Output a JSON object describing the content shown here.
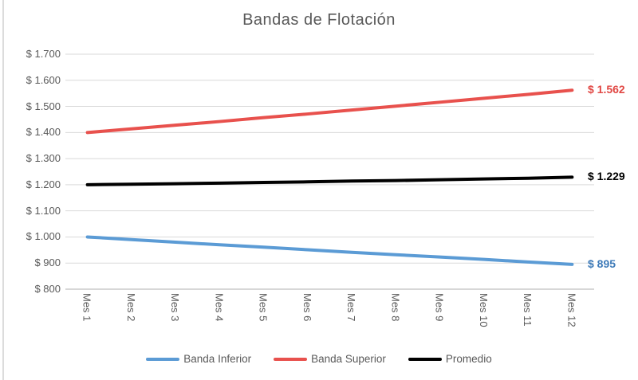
{
  "chart_data": {
    "type": "line",
    "title": "Bandas de Flotación",
    "categories": [
      "Mes 1",
      "Mes 2",
      "Mes 3",
      "Mes 4",
      "Mes 5",
      "Mes 6",
      "Mes 7",
      "Mes 8",
      "Mes 9",
      "Mes 10",
      "Mes 11",
      "Mes 12"
    ],
    "xlabel": "",
    "ylabel": "",
    "y_axis": {
      "min": 800,
      "max": 1700,
      "step": 100,
      "tick_values": [
        1700,
        1600,
        1500,
        1400,
        1300,
        1200,
        1100,
        1000,
        900,
        800
      ],
      "tick_labels": [
        "$ 1.700",
        "$ 1.600",
        "$ 1.500",
        "$ 1.400",
        "$ 1.300",
        "$ 1.200",
        "$ 1.100",
        "$ 1.000",
        "$ 900",
        "$ 800"
      ]
    },
    "series": [
      {
        "name": "Banda Inferior",
        "color": "#5b9bd5",
        "values": [
          1000,
          990,
          980,
          970,
          961,
          951,
          941,
          932,
          923,
          914,
          904,
          895
        ],
        "end_label": "$ 895",
        "end_label_color": "#3d7ab8"
      },
      {
        "name": "Banda Superior",
        "color": "#e8514d",
        "values": [
          1400,
          1414,
          1428,
          1442,
          1457,
          1471,
          1486,
          1501,
          1516,
          1531,
          1546,
          1562
        ],
        "end_label": "$ 1.562",
        "end_label_color": "#e14844"
      },
      {
        "name": "Promedio",
        "color": "#000000",
        "values": [
          1200,
          1202,
          1204,
          1206,
          1209,
          1211,
          1214,
          1216,
          1219,
          1222,
          1225,
          1229
        ],
        "end_label": "$ 1.229",
        "end_label_color": "#000000"
      }
    ],
    "legend": {
      "position": "bottom",
      "entries": [
        "Banda Inferior",
        "Banda Superior",
        "Promedio"
      ]
    },
    "grid": true,
    "gridline_color": "#d9d9d9",
    "axis_line_color": "#bfbfbf",
    "text_color": "#595959"
  }
}
